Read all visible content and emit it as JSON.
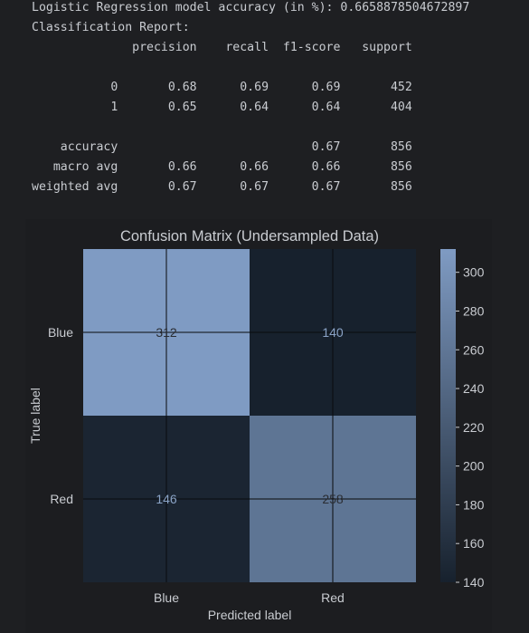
{
  "console": {
    "lines": [
      "Logistic Regression model accuracy (in %): 0.6658878504672897",
      "Classification Report:",
      "              precision    recall  f1-score   support",
      "",
      "           0       0.68      0.69      0.69       452",
      "           1       0.65      0.64      0.64       404",
      "",
      "    accuracy                           0.67       856",
      "   macro avg       0.66      0.66      0.66       856",
      "weighted avg       0.67      0.67      0.67       856"
    ]
  },
  "chart_data": {
    "type": "heatmap",
    "title": "Confusion Matrix (Undersampled Data)",
    "xlabel": "Predicted label",
    "ylabel": "True label",
    "x_categories": [
      "Blue",
      "Red"
    ],
    "y_categories": [
      "Blue",
      "Red"
    ],
    "values": [
      [
        312,
        140
      ],
      [
        146,
        258
      ]
    ],
    "colorbar": {
      "min": 140,
      "max": 312,
      "ticks": [
        "300",
        "280",
        "260",
        "240",
        "220",
        "200",
        "180",
        "160",
        "140"
      ],
      "low_color": "#17212d",
      "high_color": "#7f9bc3"
    },
    "grid": true,
    "background": "#1c1d20",
    "text_color": "#c9ccd1"
  }
}
